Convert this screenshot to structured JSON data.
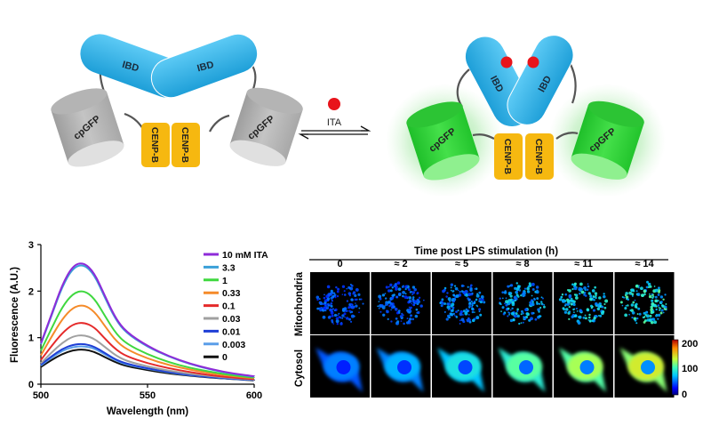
{
  "schematic": {
    "ibd_label": "IBD",
    "cpgfp_label": "cpGFP",
    "cenpb_label": "CENP-B",
    "ligand_label": "ITA",
    "colors": {
      "ibd": "#2db4ea",
      "cpgfp_off": "#bdbdbd",
      "cpgfp_on": "#35d63a",
      "cenpb": "#f6b810",
      "ligand": "#e8141b",
      "glow": "#8be08b"
    }
  },
  "chart_data": {
    "type": "line",
    "xlabel": "Wavelength (nm)",
    "ylabel": "Fluorescence (A.U.)",
    "xlim": [
      500,
      600
    ],
    "ylim": [
      0,
      3
    ],
    "xticks": [
      "500",
      "550",
      "600"
    ],
    "yticks": [
      "0",
      "1",
      "2",
      "3"
    ],
    "grid": false,
    "legend_position": "right",
    "x": [
      500,
      505,
      510,
      515,
      520,
      525,
      530,
      535,
      540,
      550,
      560,
      570,
      580,
      590,
      600
    ],
    "series": [
      {
        "name": "10 mM ITA",
        "color": "#8e2bd8",
        "values": [
          0.88,
          1.5,
          2.14,
          2.55,
          2.62,
          2.4,
          1.9,
          1.42,
          1.12,
          0.82,
          0.6,
          0.44,
          0.32,
          0.23,
          0.17
        ]
      },
      {
        "name": "3.3",
        "color": "#3aa0d8",
        "values": [
          0.86,
          1.47,
          2.1,
          2.5,
          2.58,
          2.36,
          1.86,
          1.39,
          1.1,
          0.8,
          0.59,
          0.43,
          0.31,
          0.22,
          0.16
        ]
      },
      {
        "name": "1",
        "color": "#3fd83f",
        "values": [
          0.72,
          1.2,
          1.66,
          1.95,
          2.02,
          1.85,
          1.47,
          1.1,
          0.87,
          0.64,
          0.47,
          0.35,
          0.26,
          0.19,
          0.14
        ]
      },
      {
        "name": "0.33",
        "color": "#f58b2a",
        "values": [
          0.62,
          1.02,
          1.4,
          1.65,
          1.71,
          1.57,
          1.25,
          0.94,
          0.75,
          0.55,
          0.41,
          0.31,
          0.23,
          0.17,
          0.13
        ]
      },
      {
        "name": "0.1",
        "color": "#e52a2a",
        "values": [
          0.52,
          0.82,
          1.1,
          1.29,
          1.33,
          1.23,
          0.98,
          0.75,
          0.6,
          0.45,
          0.34,
          0.26,
          0.19,
          0.14,
          0.11
        ]
      },
      {
        "name": "0.03",
        "color": "#a0a0a0",
        "values": [
          0.45,
          0.68,
          0.89,
          1.03,
          1.06,
          0.98,
          0.8,
          0.62,
          0.5,
          0.38,
          0.29,
          0.22,
          0.17,
          0.13,
          0.1
        ]
      },
      {
        "name": "0.01",
        "color": "#1f3fd6",
        "values": [
          0.42,
          0.6,
          0.76,
          0.85,
          0.87,
          0.81,
          0.67,
          0.53,
          0.44,
          0.34,
          0.26,
          0.2,
          0.15,
          0.12,
          0.09
        ]
      },
      {
        "name": "0.003",
        "color": "#5a9de8",
        "values": [
          0.4,
          0.57,
          0.72,
          0.8,
          0.82,
          0.77,
          0.64,
          0.51,
          0.42,
          0.33,
          0.25,
          0.19,
          0.15,
          0.11,
          0.09
        ]
      },
      {
        "name": "0",
        "color": "#111111",
        "values": [
          0.37,
          0.52,
          0.65,
          0.73,
          0.75,
          0.7,
          0.58,
          0.47,
          0.39,
          0.3,
          0.23,
          0.18,
          0.14,
          0.11,
          0.08
        ]
      }
    ]
  },
  "imaging": {
    "title": "Time post LPS stimulation (h)",
    "timepoints": [
      "0",
      "≈ 2",
      "≈ 5",
      "≈ 8",
      "≈ 11",
      "≈ 14"
    ],
    "rows": [
      "Mitochondria",
      "Cytosol"
    ],
    "colorbar_ticks": [
      "200",
      "100",
      "0"
    ],
    "colorbar_range": [
      0,
      200
    ],
    "mito_intensity": [
      0.25,
      0.28,
      0.35,
      0.45,
      0.55,
      0.62
    ],
    "cyto_intensity": [
      0.2,
      0.3,
      0.45,
      0.65,
      0.8,
      0.92
    ]
  }
}
